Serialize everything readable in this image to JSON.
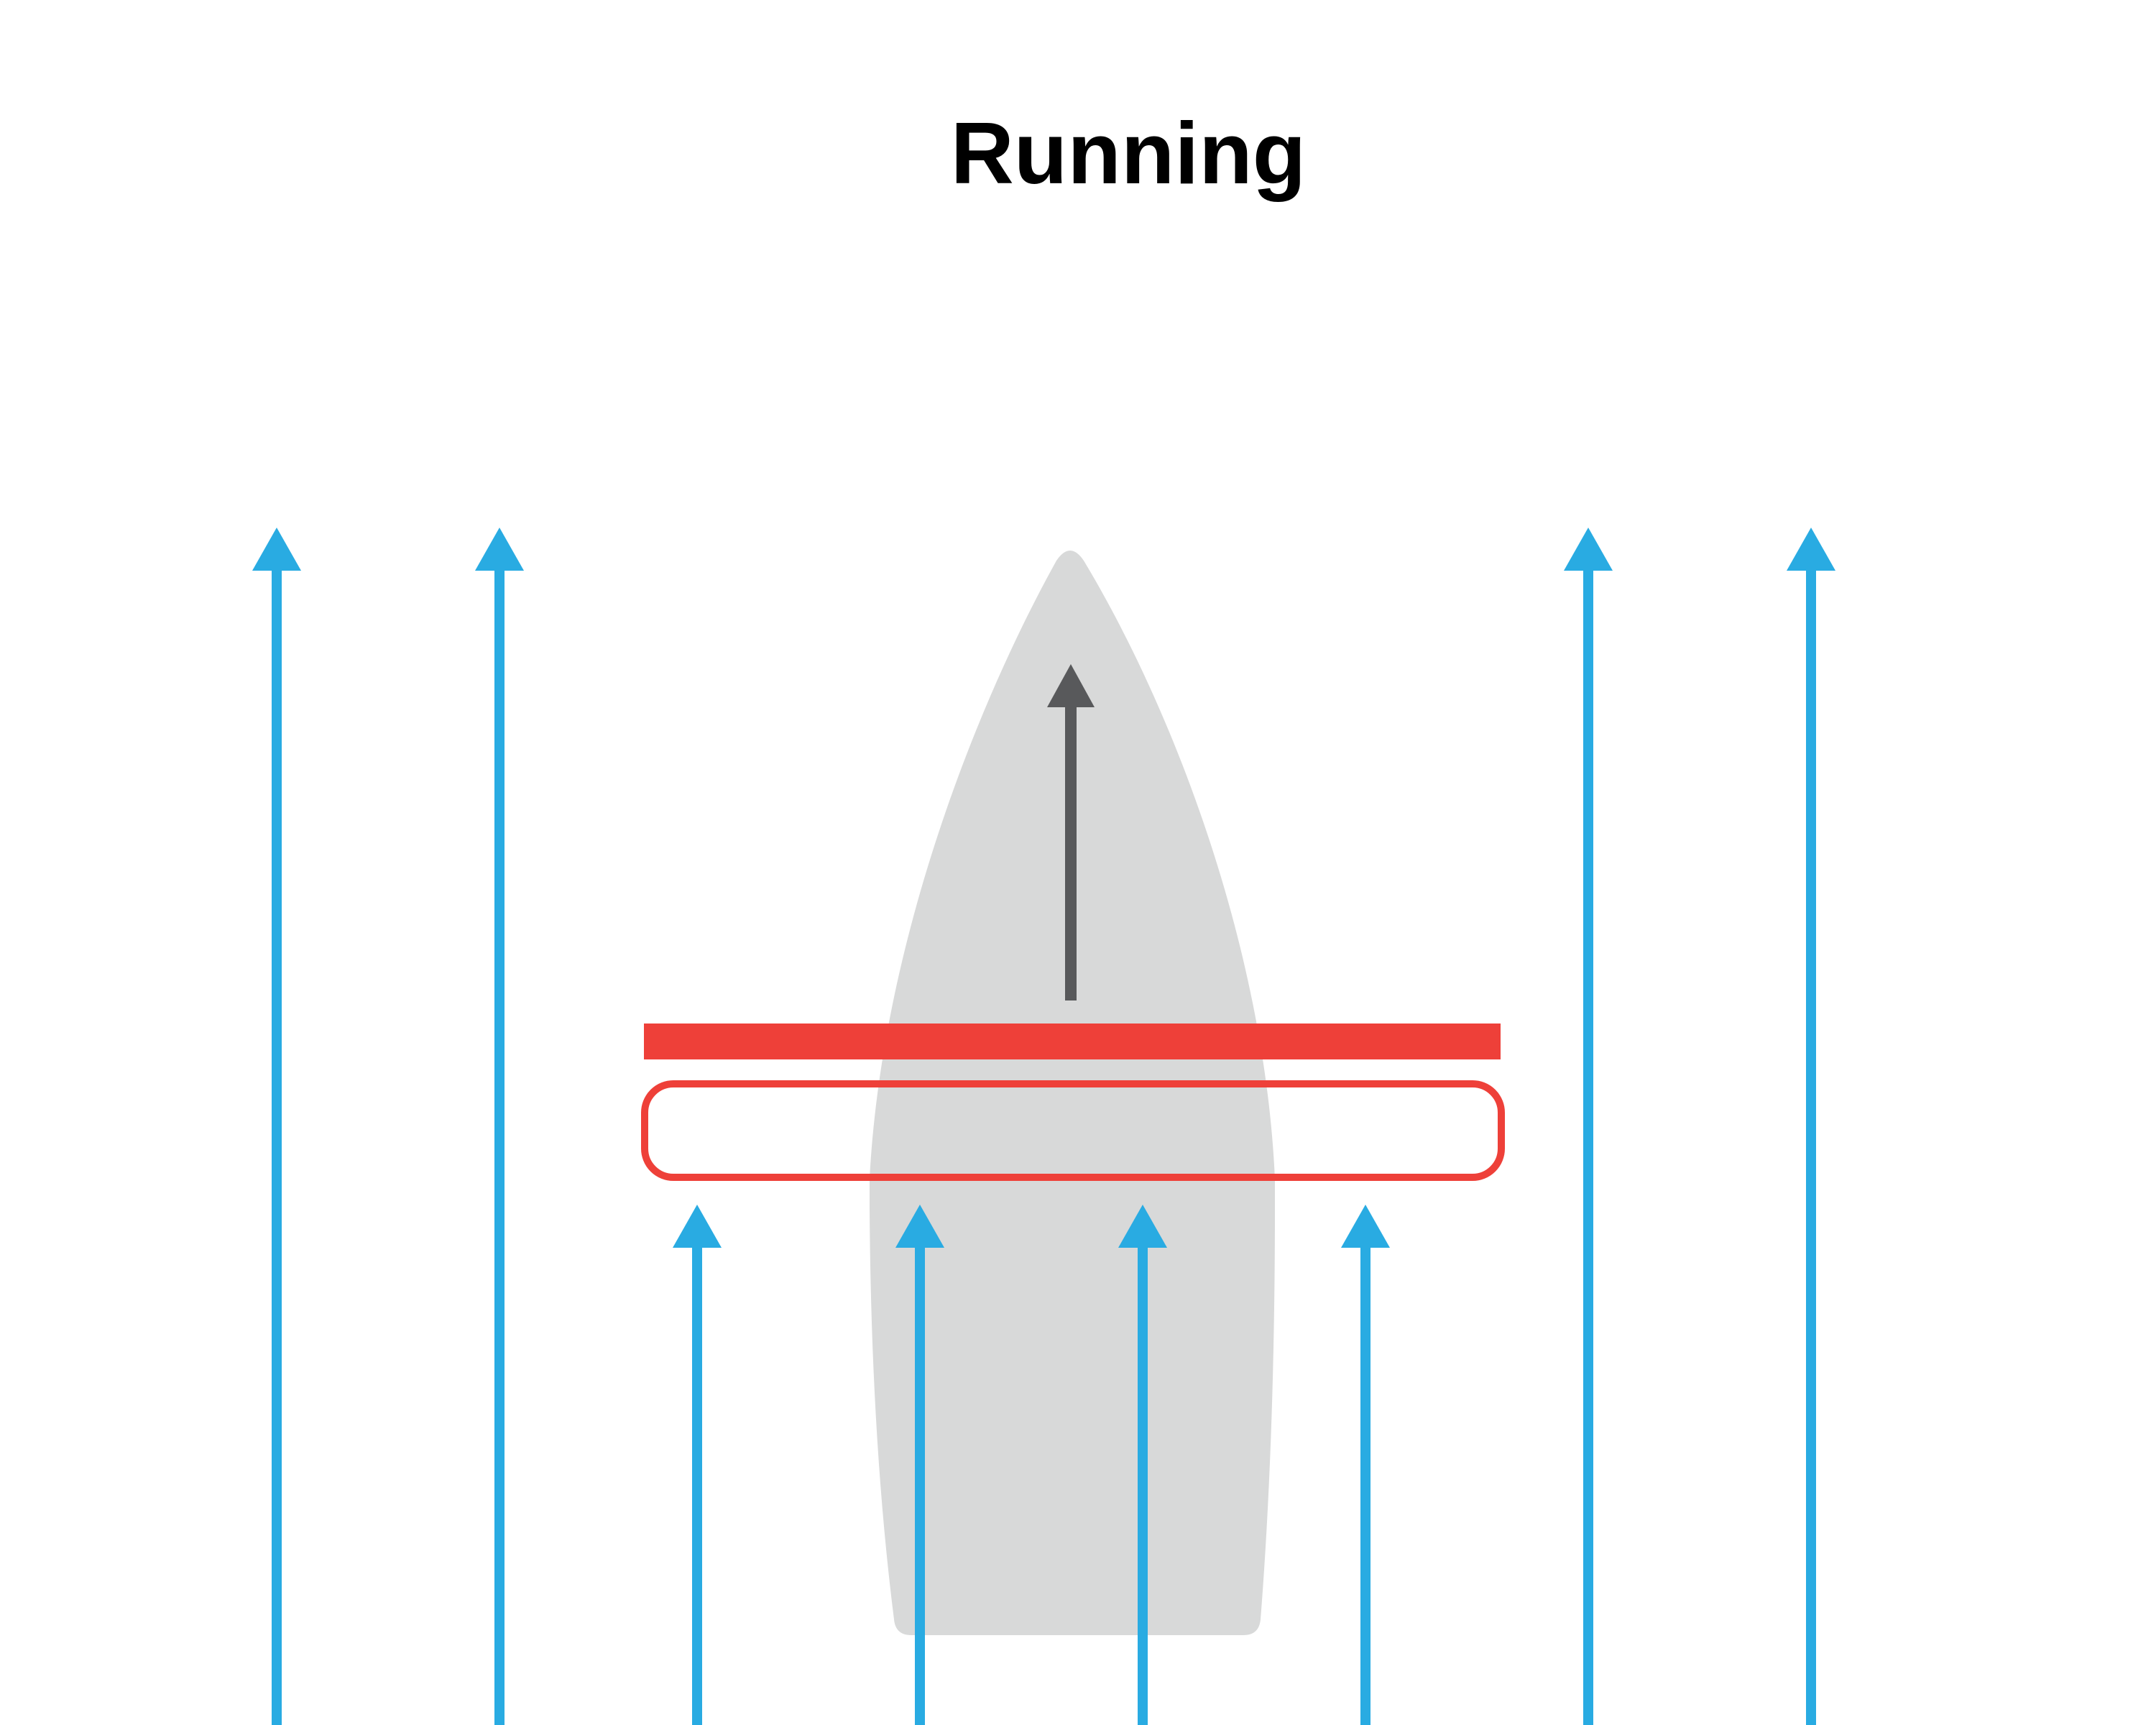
{
  "title": "Running",
  "colors": {
    "background": "#ffffff",
    "wind": "#29abe2",
    "hull": "#d8d9d9",
    "direction": "#58595b",
    "sail": "#ee4039",
    "title": "#000000"
  },
  "elements": {
    "hull": "boat-hull",
    "direction_arrow": "boat-direction-arrow",
    "sail": "sail-bar",
    "sail_outline": "sail-outline",
    "wind_arrows": "wind-arrows"
  }
}
